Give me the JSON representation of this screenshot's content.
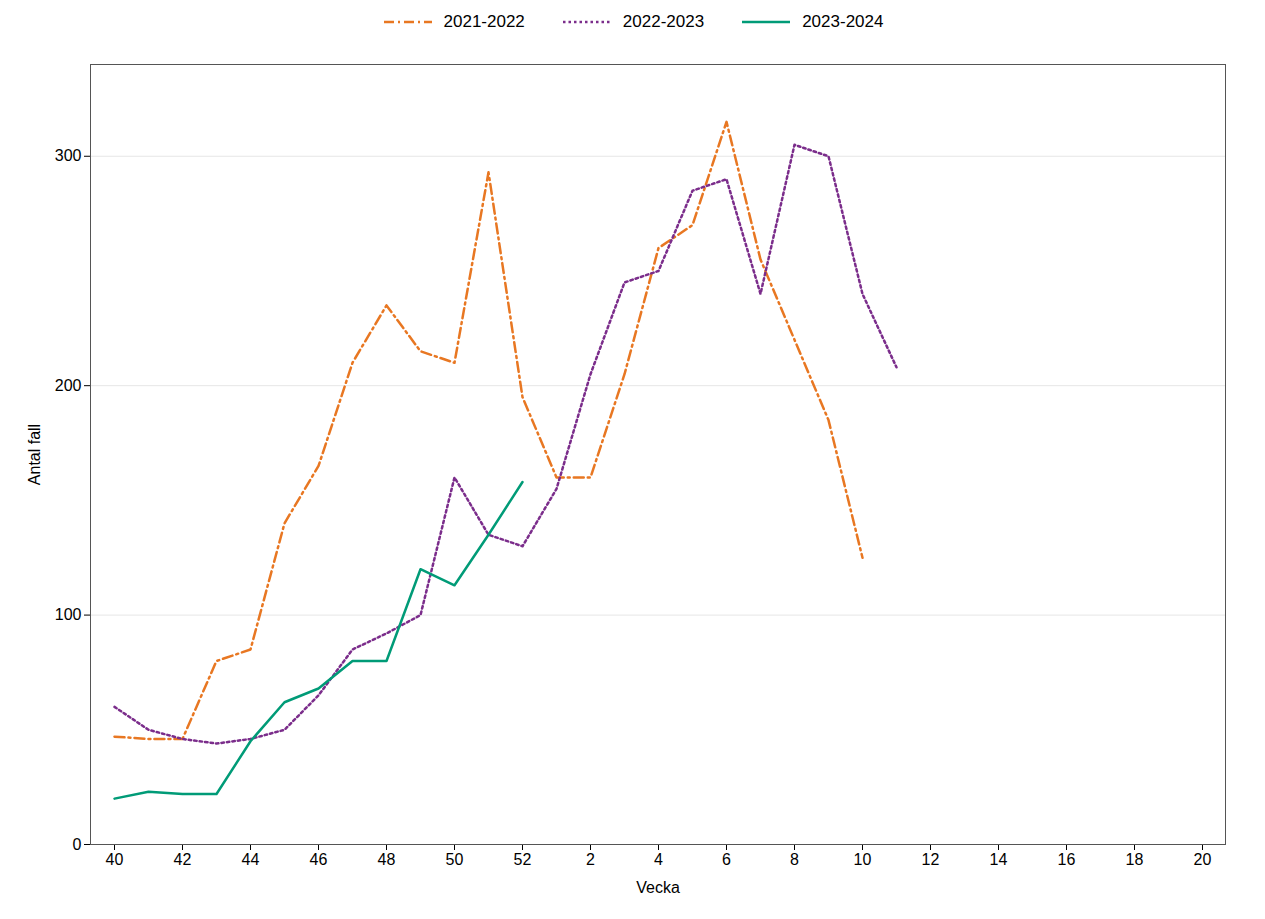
{
  "chart_data": {
    "type": "line",
    "xlabel": "Vecka",
    "ylabel": "Antal fall",
    "categories": [
      "40",
      null,
      "42",
      null,
      "44",
      null,
      "46",
      null,
      "48",
      null,
      "50",
      null,
      "52",
      null,
      "2",
      null,
      "4",
      null,
      "6",
      null,
      "8",
      null,
      "10",
      null,
      "12",
      null,
      "14",
      null,
      "16",
      null,
      "18",
      null,
      "20"
    ],
    "series": [
      {
        "name": "2021-2022",
        "color": "#E87722",
        "line_style": "dashdot",
        "values": [
          47,
          46,
          46,
          80,
          85,
          140,
          165,
          210,
          235,
          215,
          210,
          293,
          195,
          160,
          160,
          205,
          260,
          270,
          315,
          255,
          220,
          185,
          125,
          null,
          null,
          null,
          null,
          null,
          null,
          null,
          null,
          null,
          null
        ]
      },
      {
        "name": "2022-2023",
        "color": "#7B2D8B",
        "line_style": "dotted",
        "values": [
          60,
          50,
          46,
          44,
          46,
          50,
          65,
          85,
          92,
          100,
          160,
          135,
          130,
          155,
          205,
          245,
          250,
          285,
          290,
          240,
          305,
          300,
          240,
          208,
          null,
          null,
          null,
          null,
          null,
          null,
          null,
          null,
          null
        ]
      },
      {
        "name": "2023-2024",
        "color": "#009B77",
        "line_style": "solid",
        "values": [
          20,
          23,
          22,
          22,
          45,
          62,
          68,
          80,
          80,
          120,
          113,
          135,
          158,
          null,
          null,
          null,
          null,
          null,
          null,
          null,
          null,
          null,
          null,
          null,
          null,
          null,
          null,
          null,
          null,
          null,
          null,
          null,
          null
        ]
      }
    ],
    "ylim": [
      0,
      340
    ],
    "yticks": [
      0,
      100,
      200,
      300
    ],
    "grid": true,
    "legend": "top"
  }
}
